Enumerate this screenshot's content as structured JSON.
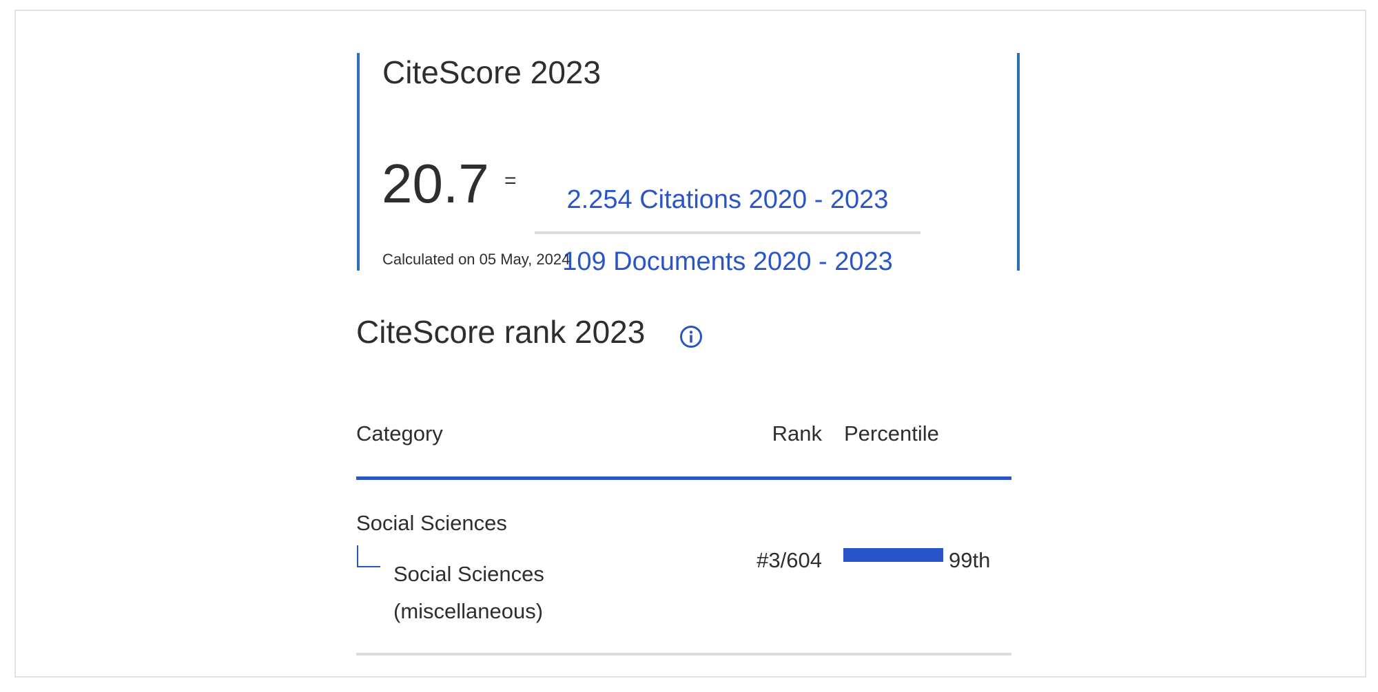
{
  "citescore": {
    "title": "CiteScore 2023",
    "value": "20.7",
    "equals": "=",
    "numerator": "2.254 Citations 2020 - 2023",
    "denominator": "109 Documents 2020 - 2023",
    "calculated": "Calculated on 05 May, 2024"
  },
  "rank": {
    "title": "CiteScore rank 2023",
    "info_icon": "info-circle-icon",
    "table": {
      "headers": {
        "category": "Category",
        "rank": "Rank",
        "percentile": "Percentile"
      },
      "rows": [
        {
          "parent": "Social Sciences",
          "child": "Social Sciences (miscellaneous)",
          "rank": "#3/604",
          "percentile_label": "99th",
          "percentile_value": 99
        }
      ]
    }
  },
  "colors": {
    "accent": "#2a55c9",
    "box_border": "#2e6fb5",
    "rule": "#dcdcdc",
    "text": "#2e2e2e"
  }
}
